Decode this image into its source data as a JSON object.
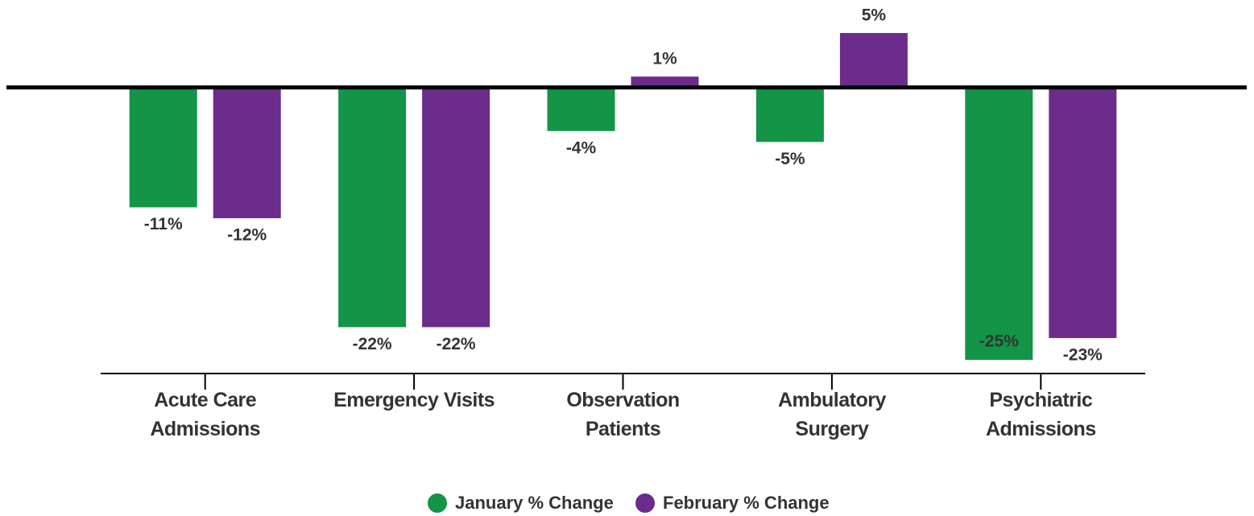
{
  "chart_data": {
    "type": "bar",
    "categories": [
      "Acute Care Admissions",
      "Emergency Visits",
      "Observation Patients",
      "Ambulatory Surgery",
      "Psychiatric Admissions"
    ],
    "series": [
      {
        "name": "January % Change",
        "color": "#139447",
        "values": [
          -11,
          -22,
          -4,
          -5,
          -25
        ],
        "value_labels": [
          "-11%",
          "-22%",
          "-4%",
          "-5%",
          "-25%"
        ]
      },
      {
        "name": "February % Change",
        "color": "#6b2c8b",
        "values": [
          -12,
          -22,
          1,
          5,
          -23
        ],
        "value_labels": [
          "-12%",
          "-22%",
          "1%",
          "5%",
          "-23%"
        ]
      }
    ]
  }
}
